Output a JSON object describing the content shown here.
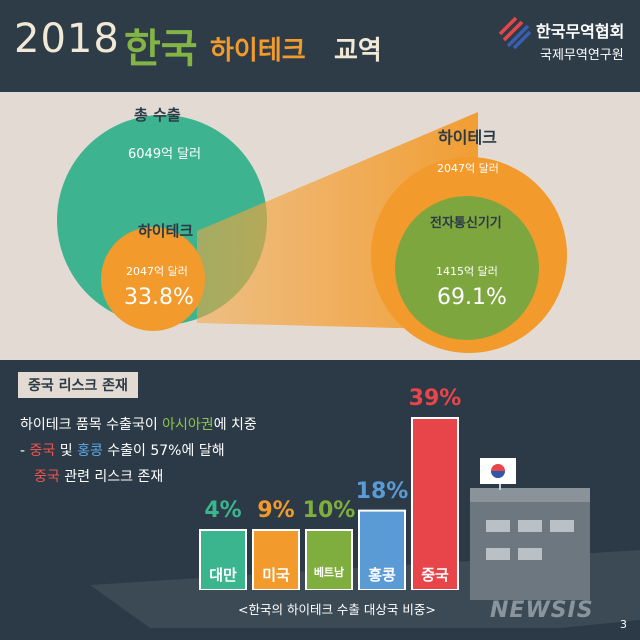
{
  "title": {
    "year": "2018",
    "korea": "한국",
    "hitech": "하이테크",
    "trade": "교역"
  },
  "org": {
    "name": "한국무역협회",
    "sub": "국제무역연구원"
  },
  "venn": {
    "total_label": "총 수출",
    "total_value": "6049억 달러",
    "hitech_label": "하이테크",
    "hitech_value": "2047억 달러",
    "hitech_share": "33.8%",
    "right_label": "하이테크",
    "right_value": "2047억 달러",
    "electronics_label": "전자통신기기",
    "electronics_value": "1415억 달러",
    "electronics_share": "69.1%"
  },
  "section": {
    "label": "중국 리스크 존재",
    "line1_a": "하이테크 품목 수출국이 ",
    "line1_b": "아시아권",
    "line1_c": "에 치중",
    "line2_a": "- ",
    "line2_b": "중국",
    "line2_c": " 및 ",
    "line2_d": "홍콩",
    "line2_e": " 수출이 57%에 달해",
    "line3_a": "중국",
    "line3_b": " 관련 리스크 존재"
  },
  "chart_data": {
    "type": "bar",
    "title": "",
    "caption": "<한국의 하이테크 수출 대상국 비중>",
    "categories": [
      "대만",
      "미국",
      "베트남",
      "홍콩",
      "중국"
    ],
    "values": [
      4,
      9,
      10,
      18,
      39
    ],
    "value_labels": [
      "4%",
      "9%",
      "10%",
      "18%",
      "39%"
    ],
    "unit": "%",
    "colors": [
      "#3bb58e",
      "#f29a2b",
      "#7fae3e",
      "#5b9bd5",
      "#e8454a"
    ],
    "label_colors": [
      "#3bb58e",
      "#f29a2b",
      "#7fae3e",
      "#5b9bd5",
      "#e8454a"
    ]
  },
  "watermark": "NEWSIS",
  "page_number": "3"
}
